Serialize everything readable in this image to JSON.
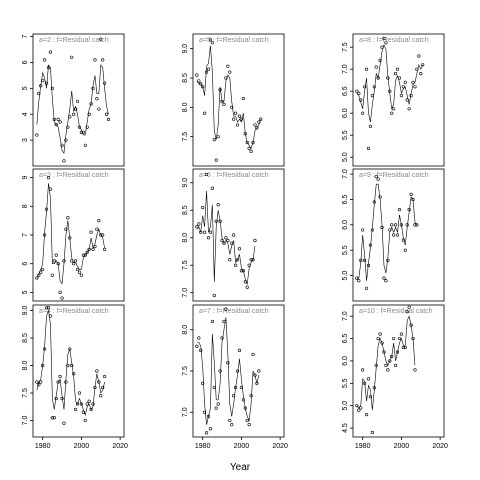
{
  "chart_data": {
    "type": "scatter",
    "xlabel": "Year",
    "xlim": [
      1975,
      2022
    ],
    "xticks": [
      "1980",
      "2000",
      "2020"
    ],
    "xtick_values": [
      1980,
      2000,
      2020
    ],
    "year_start": 1977,
    "panels": [
      {
        "title": "a=2  :  f=Residual catch",
        "ylim": [
          2.0,
          7.1
        ],
        "yticks": [
          "3",
          "4",
          "5",
          "6",
          "7"
        ],
        "ytick_values": [
          3,
          4,
          5,
          6,
          7
        ],
        "points": [
          3.2,
          4.8,
          5.1,
          5.3,
          6.1,
          5.2,
          5.8,
          6.4,
          5.0,
          3.8,
          3.6,
          3.8,
          3.7,
          2.8,
          2.2,
          3.0,
          3.5,
          3.9,
          6.2,
          4.0,
          4.2,
          4.5,
          3.5,
          3.3,
          3.3,
          2.8,
          3.5,
          4.0,
          4.4,
          5.0,
          6.1,
          4.6,
          4.2,
          6.9,
          6.1,
          5.2,
          4.0,
          3.8
        ],
        "fit": [
          3.6,
          4.5,
          5.1,
          5.6,
          5.4,
          5.0,
          5.9,
          5.8,
          4.6,
          3.7,
          3.6,
          3.5,
          3.1,
          2.6,
          2.5,
          3.2,
          3.7,
          4.2,
          4.9,
          4.1,
          4.3,
          4.0,
          3.5,
          3.4,
          3.2,
          3.2,
          3.7,
          4.2,
          4.4,
          5.1,
          5.5,
          4.8,
          4.8,
          5.9,
          5.8,
          5.0,
          4.3,
          4.0
        ]
      },
      {
        "title": "a=5  :  f=Residual catch",
        "ylim": [
          7.0,
          9.25
        ],
        "yticks": [
          "7.5",
          "8.0",
          "8.5",
          "9.0"
        ],
        "ytick_values": [
          7.5,
          8.0,
          8.5,
          9.0
        ],
        "points": [
          8.55,
          8.45,
          8.4,
          8.35,
          7.9,
          8.6,
          8.65,
          9.15,
          9.1,
          7.45,
          7.1,
          7.5,
          8.3,
          8.1,
          8.05,
          8.5,
          8.7,
          8.6,
          8.0,
          7.8,
          7.9,
          7.7,
          7.85,
          7.8,
          8.15,
          7.55,
          7.4,
          7.3,
          7.25,
          7.4,
          7.7,
          7.65,
          7.75,
          7.8
        ],
        "fit": [
          8.45,
          8.4,
          8.4,
          8.35,
          8.2,
          8.7,
          8.75,
          9.05,
          8.6,
          7.6,
          7.45,
          7.7,
          8.35,
          8.1,
          8.1,
          8.45,
          8.55,
          8.5,
          8.1,
          7.85,
          7.85,
          7.75,
          7.8,
          7.75,
          7.9,
          7.55,
          7.4,
          7.35,
          7.3,
          7.4,
          7.6,
          7.65,
          7.7,
          7.8
        ]
      },
      {
        "title": "a=8  :  f=Residual catch",
        "ylim": [
          4.8,
          7.8
        ],
        "yticks": [
          "5.0",
          "5.5",
          "6.0",
          "6.5",
          "7.0",
          "7.5"
        ],
        "ytick_values": [
          5.0,
          5.5,
          6.0,
          6.5,
          7.0,
          7.5
        ],
        "points": [
          6.5,
          6.45,
          6.3,
          6.0,
          6.6,
          7.0,
          5.2,
          5.7,
          6.4,
          6.6,
          7.05,
          6.8,
          7.2,
          7.5,
          7.7,
          7.6,
          6.8,
          6.5,
          6.0,
          6.1,
          6.9,
          7.0,
          6.8,
          6.4,
          6.6,
          6.7,
          6.3,
          6.1,
          6.4,
          6.7,
          6.6,
          7.0,
          7.3,
          6.9,
          7.1
        ],
        "fit": [
          6.45,
          6.4,
          6.25,
          6.1,
          6.5,
          6.8,
          6.0,
          5.8,
          6.2,
          6.5,
          6.9,
          6.8,
          7.1,
          7.4,
          7.55,
          7.45,
          6.85,
          6.45,
          6.1,
          6.2,
          6.75,
          6.85,
          6.7,
          6.45,
          6.55,
          6.6,
          6.4,
          6.2,
          6.45,
          6.65,
          6.7,
          6.9,
          7.1,
          7.0,
          7.1
        ]
      },
      {
        "title": "a=3  :  f=Residual catch",
        "ylim": [
          4.7,
          9.3
        ],
        "yticks": [
          "5",
          "6",
          "7",
          "8",
          "9"
        ],
        "ytick_values": [
          5,
          6,
          7,
          8,
          9
        ],
        "points": [
          5.5,
          5.6,
          5.7,
          5.8,
          7.0,
          7.9,
          9.0,
          8.6,
          5.6,
          6.1,
          6.3,
          6.0,
          5.0,
          4.8,
          6.1,
          7.2,
          7.6,
          6.9,
          6.1,
          6.0,
          6.1,
          5.8,
          5.7,
          5.6,
          6.3,
          6.3,
          6.4,
          6.5,
          7.1,
          6.5,
          6.6,
          7.2,
          7.5,
          7.0,
          7.0,
          6.5
        ],
        "fit": [
          5.5,
          5.65,
          5.8,
          6.0,
          7.1,
          7.8,
          8.8,
          8.3,
          6.0,
          6.0,
          6.1,
          6.0,
          5.4,
          5.3,
          6.0,
          7.0,
          7.5,
          6.9,
          6.2,
          6.05,
          6.05,
          5.9,
          5.8,
          5.8,
          6.2,
          6.3,
          6.4,
          6.5,
          6.9,
          6.55,
          6.7,
          7.0,
          7.2,
          7.0,
          6.9,
          6.55
        ]
      },
      {
        "title": "a=6  :  f=Residual catch",
        "ylim": [
          6.85,
          9.25
        ],
        "yticks": [
          "7.0",
          "7.5",
          "8.0",
          "8.5",
          "9.0"
        ],
        "ytick_values": [
          7.0,
          7.5,
          8.0,
          8.5,
          9.0
        ],
        "points": [
          8.2,
          8.25,
          8.1,
          8.55,
          8.1,
          9.15,
          8.0,
          8.1,
          8.9,
          6.95,
          8.3,
          8.6,
          8.3,
          7.95,
          7.9,
          8.0,
          7.95,
          7.6,
          7.9,
          8.05,
          7.5,
          7.6,
          7.8,
          7.4,
          7.4,
          7.2,
          7.1,
          7.5,
          7.6,
          7.6,
          7.95
        ],
        "fit": [
          8.15,
          8.2,
          8.1,
          8.4,
          8.2,
          8.85,
          8.1,
          8.2,
          8.6,
          7.2,
          8.2,
          8.5,
          8.3,
          8.0,
          7.9,
          7.95,
          7.9,
          7.7,
          7.85,
          7.95,
          7.55,
          7.6,
          7.7,
          7.45,
          7.4,
          7.25,
          7.15,
          7.45,
          7.55,
          7.6,
          7.85
        ]
      },
      {
        "title": "a=9  :  f=Residual catch",
        "ylim": [
          4.5,
          7.1
        ],
        "yticks": [
          "5.0",
          "5.5",
          "6.0",
          "6.5",
          "7.0"
        ],
        "ytick_values": [
          5.0,
          5.5,
          6.0,
          6.5,
          7.0
        ],
        "points": [
          4.95,
          4.9,
          5.3,
          5.9,
          5.3,
          4.75,
          5.2,
          5.6,
          5.9,
          6.45,
          6.95,
          6.9,
          6.55,
          5.95,
          4.95,
          4.9,
          5.3,
          5.9,
          6.0,
          5.8,
          6.0,
          5.8,
          6.3,
          6.0,
          5.7,
          5.5,
          6.0,
          6.3,
          6.6,
          6.5,
          6.0,
          6.0
        ],
        "fit": [
          4.95,
          4.95,
          5.25,
          5.8,
          5.4,
          4.9,
          5.25,
          5.55,
          5.95,
          6.4,
          6.8,
          6.8,
          6.5,
          6.0,
          5.2,
          5.05,
          5.35,
          5.85,
          5.95,
          5.85,
          5.95,
          5.85,
          6.2,
          6.0,
          5.75,
          5.6,
          5.95,
          6.25,
          6.55,
          6.5,
          6.05,
          6.0
        ]
      },
      {
        "title": "a=4  :  f=Residual catch",
        "ylim": [
          6.7,
          9.1
        ],
        "yticks": [
          "7.0",
          "7.5",
          "8.0",
          "8.5",
          "9.0"
        ],
        "ytick_values": [
          7.0,
          7.5,
          8.0,
          8.5,
          9.0
        ],
        "points": [
          7.7,
          7.65,
          7.7,
          8.0,
          8.3,
          9.05,
          9.05,
          8.9,
          7.05,
          7.05,
          7.4,
          7.7,
          7.8,
          7.4,
          6.95,
          7.7,
          8.0,
          8.3,
          8.0,
          7.85,
          7.2,
          7.3,
          7.5,
          7.3,
          7.15,
          7.0,
          7.3,
          7.35,
          7.2,
          7.3,
          7.6,
          7.9,
          7.7,
          7.45,
          7.6,
          7.8
        ],
        "fit": [
          7.55,
          7.7,
          7.75,
          8.0,
          8.35,
          8.9,
          9.0,
          8.75,
          7.4,
          7.2,
          7.45,
          7.7,
          7.75,
          7.45,
          7.2,
          7.75,
          8.2,
          8.3,
          8.05,
          7.8,
          7.35,
          7.3,
          7.4,
          7.3,
          7.2,
          7.1,
          7.25,
          7.3,
          7.2,
          7.25,
          7.6,
          7.85,
          7.7,
          7.5,
          7.55,
          7.7
        ]
      },
      {
        "title": "a=7  :  f=Residual catch",
        "ylim": [
          6.7,
          8.3
        ],
        "yticks": [
          "7.0",
          "7.5",
          "8.0"
        ],
        "ytick_values": [
          7.0,
          7.5,
          8.0
        ],
        "points": [
          7.8,
          7.9,
          7.75,
          7.35,
          7.0,
          6.75,
          6.95,
          6.8,
          8.1,
          7.3,
          7.05,
          7.1,
          7.5,
          7.9,
          8.1,
          8.25,
          7.6,
          6.9,
          6.85,
          7.2,
          7.3,
          7.5,
          7.75,
          7.3,
          7.15,
          7.05,
          6.9,
          6.85,
          7.2,
          7.7,
          7.45,
          7.35,
          7.5
        ],
        "fit": [
          7.85,
          7.85,
          7.8,
          7.55,
          7.1,
          6.85,
          6.95,
          7.05,
          7.95,
          7.6,
          7.15,
          7.15,
          7.35,
          7.85,
          8.0,
          8.15,
          7.7,
          7.1,
          6.95,
          7.1,
          7.3,
          7.45,
          7.65,
          7.4,
          7.2,
          7.05,
          6.95,
          6.9,
          7.1,
          7.5,
          7.45,
          7.35,
          7.45
        ]
      },
      {
        "title": "a=10  :  f=Residual catch",
        "ylim": [
          4.3,
          7.25
        ],
        "yticks": [
          "4.5",
          "5.0",
          "5.5",
          "6.0",
          "6.5",
          "7.0"
        ],
        "ytick_values": [
          4.5,
          5.0,
          5.5,
          6.0,
          6.5,
          7.0
        ],
        "points": [
          5.0,
          4.9,
          4.95,
          5.8,
          5.5,
          4.8,
          5.6,
          5.2,
          4.4,
          5.4,
          5.9,
          6.5,
          6.6,
          6.4,
          6.2,
          5.9,
          5.8,
          6.0,
          6.1,
          6.5,
          5.9,
          6.2,
          6.5,
          6.6,
          6.3,
          6.3,
          7.1,
          7.2,
          6.8,
          6.5,
          5.8
        ],
        "fit": [
          5.0,
          4.95,
          5.0,
          5.6,
          5.55,
          5.1,
          5.45,
          5.35,
          4.9,
          5.35,
          5.85,
          6.35,
          6.5,
          6.4,
          6.2,
          6.0,
          5.9,
          6.0,
          6.1,
          6.4,
          6.0,
          6.2,
          6.4,
          6.5,
          6.35,
          6.35,
          6.9,
          7.0,
          6.8,
          6.5,
          5.9
        ]
      }
    ]
  }
}
